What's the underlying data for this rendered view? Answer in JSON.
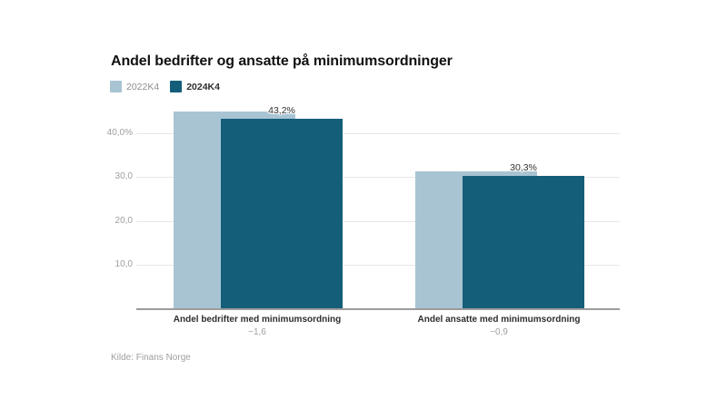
{
  "chart_data": {
    "type": "bar",
    "title": "Andel bedrifter og ansatte på minimumsordninger",
    "source": "Kilde: Finans Norge",
    "legend_position": "top-left",
    "grid": true,
    "ylim": [
      0,
      46.5
    ],
    "yticks": [
      {
        "value": 10,
        "label": "10,0"
      },
      {
        "value": 20,
        "label": "20,0"
      },
      {
        "value": 30,
        "label": "30,0"
      },
      {
        "value": 40,
        "label": "40,0%"
      }
    ],
    "categories": [
      {
        "label": "Andel bedrifter med minimumsordning",
        "sublabel": "−1,6"
      },
      {
        "label": "Andel ansatte med minimumsordning",
        "sublabel": "−0,9"
      }
    ],
    "series": [
      {
        "name": "2022K4",
        "color": "#a8c4d3",
        "values": [
          44.8,
          31.2
        ],
        "value_labels": [
          "",
          ""
        ]
      },
      {
        "name": "2024K4",
        "color": "#155e7a",
        "values": [
          43.2,
          30.3
        ],
        "value_labels": [
          "43,2%",
          "30,3%"
        ]
      }
    ]
  }
}
